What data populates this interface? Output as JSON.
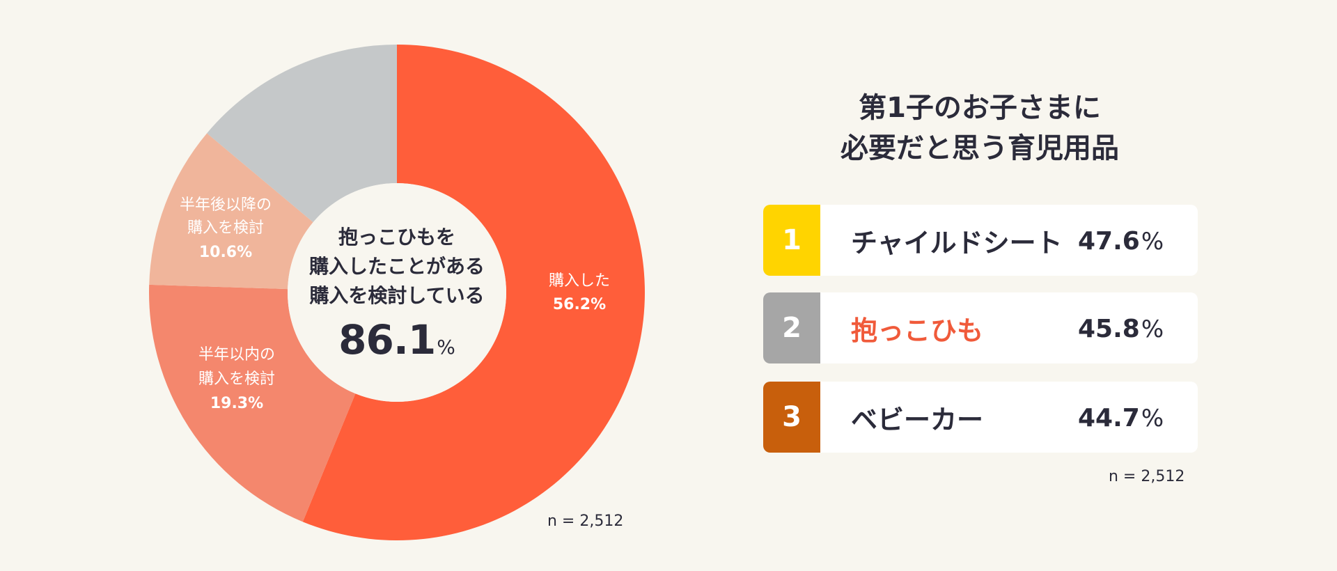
{
  "chart_data": [
    {
      "type": "pie",
      "subtype": "donut",
      "slices": [
        {
          "label": "購入した",
          "value": 56.2,
          "pct_text": "56.2%",
          "color": "#ff5e3a"
        },
        {
          "label": "半年以内の購入を検討",
          "label_lines": [
            "半年以内の",
            "購入を検討"
          ],
          "value": 19.3,
          "pct_text": "19.3%",
          "color": "#f4876d"
        },
        {
          "label": "半年後以降の購入を検討",
          "label_lines": [
            "半年後以降の",
            "購入を検討"
          ],
          "value": 10.6,
          "pct_text": "10.6%",
          "color": "#f0b59b"
        },
        {
          "label": "",
          "value": 13.9,
          "pct_text": "",
          "color": "#c5c8c9"
        }
      ],
      "center": {
        "lines": [
          "抱っこひもを",
          "購入したことがある",
          "購入を検討している"
        ],
        "value": "86.1",
        "unit": "%"
      },
      "note": "n = 2,512"
    },
    {
      "type": "table",
      "title_lines": [
        "第1子のお子さまに",
        "必要だと思う育児用品"
      ],
      "columns": [
        "rank",
        "item",
        "value"
      ],
      "rows": [
        {
          "rank": "1",
          "item": "チャイルドシート",
          "value": "47.6",
          "unit": "%",
          "rank_color": "#ffd400",
          "highlight": false
        },
        {
          "rank": "2",
          "item": "抱っこひも",
          "value": "45.8",
          "unit": "%",
          "rank_color": "#a6a6a6",
          "highlight": true
        },
        {
          "rank": "3",
          "item": "ベビーカー",
          "value": "44.7",
          "unit": "%",
          "rank_color": "#c85f0c",
          "highlight": false
        }
      ],
      "note": "n = 2,512"
    }
  ],
  "colors": {
    "background": "#f8f6ef",
    "accent": "#f05a3a",
    "text": "#2b2b3a"
  }
}
